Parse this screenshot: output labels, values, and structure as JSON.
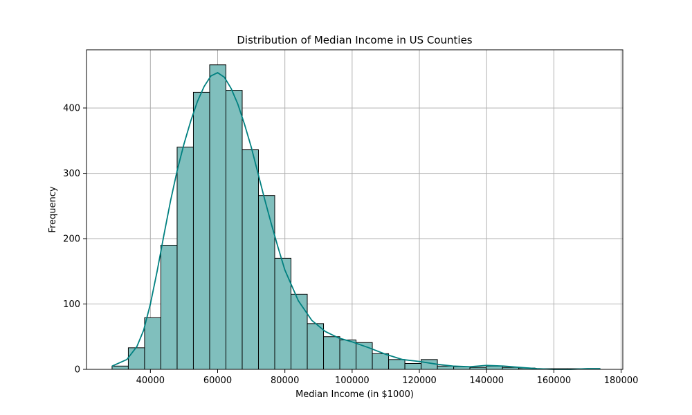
{
  "chart_data": {
    "type": "histogram",
    "title": "Distribution of Median Income in US Counties",
    "xlabel": "Median Income (in $1000)",
    "ylabel": "Frequency",
    "xlim": [
      21000,
      180500
    ],
    "ylim": [
      0,
      489
    ],
    "xticks": [
      40000,
      60000,
      80000,
      100000,
      120000,
      140000,
      160000,
      180000
    ],
    "yticks": [
      0,
      100,
      200,
      300,
      400
    ],
    "grid": true,
    "bin_start": 28600,
    "bin_width": 4838,
    "counts": [
      5,
      33,
      79,
      190,
      340,
      424,
      466,
      427,
      336,
      266,
      170,
      115,
      70,
      50,
      45,
      41,
      24,
      15,
      9,
      15,
      5,
      4,
      3,
      5,
      3,
      2,
      1,
      1,
      1,
      1
    ],
    "bar_color": "#80bfbd",
    "bar_edge_color": "#000000",
    "kde": {
      "color": "#008080",
      "x": [
        28600,
        33000,
        36000,
        38000,
        40000,
        42000,
        44000,
        46000,
        48000,
        50000,
        52000,
        54000,
        56000,
        58000,
        60000,
        62000,
        64000,
        66000,
        68000,
        70000,
        72000,
        74000,
        76000,
        78000,
        80000,
        84000,
        88000,
        92000,
        96000,
        100000,
        105000,
        110000,
        115000,
        120000,
        125000,
        130000,
        135000,
        140000,
        145000,
        150000,
        155000,
        160000,
        165000,
        170000,
        173800
      ],
      "y": [
        5,
        15,
        35,
        60,
        100,
        150,
        205,
        258,
        305,
        345,
        380,
        410,
        433,
        449,
        454,
        447,
        430,
        406,
        375,
        340,
        300,
        260,
        222,
        186,
        152,
        105,
        75,
        58,
        48,
        42,
        33,
        23,
        15,
        12,
        8,
        5,
        4,
        6,
        5,
        3,
        1,
        0,
        0,
        1,
        1
      ]
    }
  }
}
